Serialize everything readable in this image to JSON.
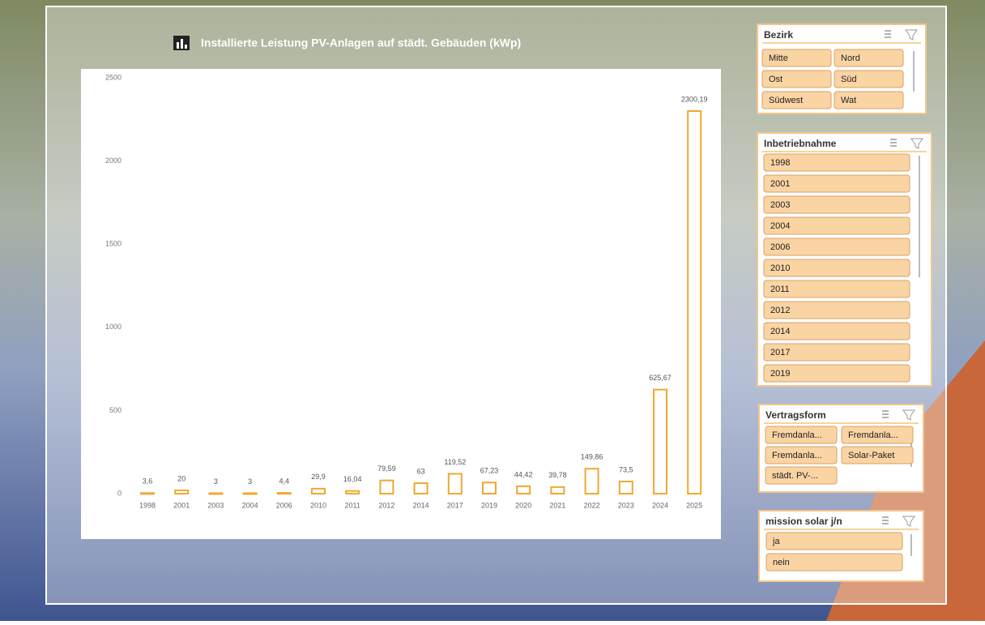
{
  "chart_data": {
    "type": "bar",
    "title": "Installierte Leistung PV-Anlagen auf städt. Gebäuden (kWp)",
    "categories": [
      "1998",
      "2001",
      "2003",
      "2004",
      "2006",
      "2010",
      "2011",
      "2012",
      "2014",
      "2017",
      "2019",
      "2020",
      "2021",
      "2022",
      "2023",
      "2024",
      "2025"
    ],
    "values": [
      3.6,
      20,
      3,
      3,
      4.4,
      29.9,
      16.04,
      79.59,
      63,
      119.52,
      67.23,
      44.42,
      39.78,
      149.86,
      73.5,
      625.67,
      2300.19
    ],
    "value_labels": [
      "3,6",
      "20",
      "3",
      "3",
      "4,4",
      "29,9",
      "16,04",
      "79,59",
      "63",
      "119,52",
      "67,23",
      "44,42",
      "39,78",
      "149,86",
      "73,5",
      "625,67",
      "2300,19"
    ],
    "color": "#f0a830",
    "ylim": [
      0,
      2500
    ],
    "yticks": [
      0,
      500,
      1000,
      1500,
      2000,
      2500
    ],
    "grid": false
  },
  "slicers": [
    {
      "title": "Bezirk",
      "items": [
        "Mitte",
        "Nord",
        "Ost",
        "Süd",
        "Südwest",
        "Wat"
      ]
    },
    {
      "title": "Inbetriebnahme",
      "items": [
        "1998",
        "2001",
        "2003",
        "2004",
        "2006",
        "2010",
        "2011",
        "2012",
        "2014",
        "2017",
        "2019"
      ]
    },
    {
      "title": "Vertragsform",
      "items": [
        "Fremdanla...",
        "Fremdanla...",
        "Fremdanla...",
        "Solar-Paket",
        "städt. PV-..."
      ]
    },
    {
      "title": "mission solar j/n",
      "items": [
        "ja",
        "nein"
      ]
    }
  ]
}
